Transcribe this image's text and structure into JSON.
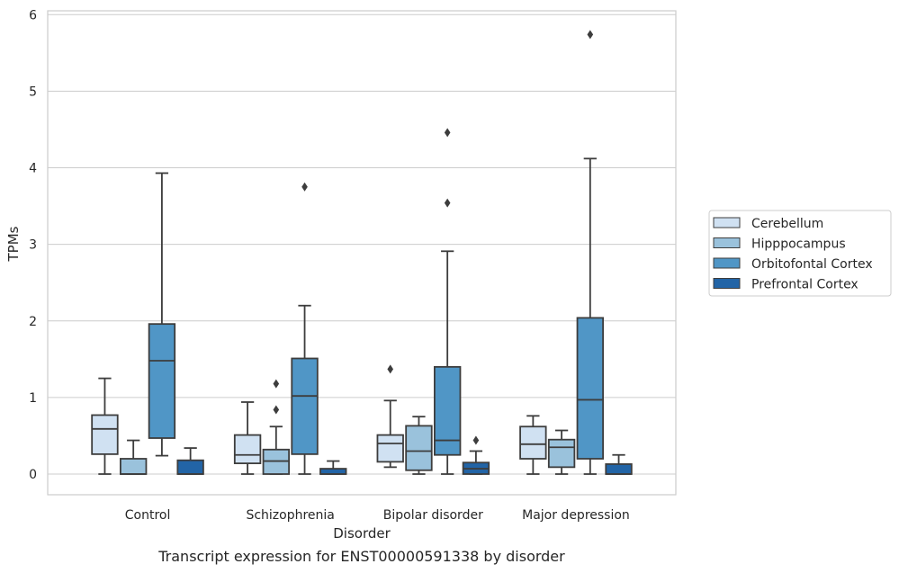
{
  "chart_data": {
    "type": "box",
    "xlabel": "Disorder",
    "ylabel": "TPMs",
    "caption": "Transcript expression for ENST00000591338 by disorder",
    "ylim": [
      -0.27,
      6.05
    ],
    "yticks": [
      "0",
      "1",
      "2",
      "3",
      "4",
      "5",
      "6"
    ],
    "grid": true,
    "legend_position": "right",
    "categories": [
      "Control",
      "Schizophrenia",
      "Bipolar disorder",
      "Major depression"
    ],
    "series": [
      {
        "name": "Cerebellum",
        "color": "#d0e1f2",
        "boxes": [
          {
            "whislo": 0.0,
            "q1": 0.26,
            "med": 0.59,
            "q3": 0.77,
            "whishi": 1.25,
            "fliers": []
          },
          {
            "whislo": 0.0,
            "q1": 0.14,
            "med": 0.25,
            "q3": 0.51,
            "whishi": 0.94,
            "fliers": []
          },
          {
            "whislo": 0.09,
            "q1": 0.16,
            "med": 0.4,
            "q3": 0.51,
            "whishi": 0.96,
            "fliers": [
              1.37
            ]
          },
          {
            "whislo": 0.0,
            "q1": 0.2,
            "med": 0.39,
            "q3": 0.62,
            "whishi": 0.76,
            "fliers": []
          }
        ]
      },
      {
        "name": "Hipppocampus",
        "color": "#9ac2dc",
        "boxes": [
          {
            "whislo": 0.0,
            "q1": 0.0,
            "med": 0.0,
            "q3": 0.2,
            "whishi": 0.44,
            "fliers": []
          },
          {
            "whislo": 0.0,
            "q1": 0.0,
            "med": 0.17,
            "q3": 0.32,
            "whishi": 0.62,
            "fliers": [
              0.84,
              1.18
            ]
          },
          {
            "whislo": 0.0,
            "q1": 0.05,
            "med": 0.3,
            "q3": 0.63,
            "whishi": 0.75,
            "fliers": []
          },
          {
            "whislo": 0.0,
            "q1": 0.09,
            "med": 0.35,
            "q3": 0.45,
            "whishi": 0.57,
            "fliers": []
          }
        ]
      },
      {
        "name": "Orbitofontal Cortex",
        "color": "#5096c6",
        "boxes": [
          {
            "whislo": 0.24,
            "q1": 0.47,
            "med": 1.48,
            "q3": 1.96,
            "whishi": 3.93,
            "fliers": []
          },
          {
            "whislo": 0.0,
            "q1": 0.26,
            "med": 1.02,
            "q3": 1.51,
            "whishi": 2.2,
            "fliers": [
              3.75
            ]
          },
          {
            "whislo": 0.0,
            "q1": 0.25,
            "med": 0.44,
            "q3": 1.4,
            "whishi": 2.91,
            "fliers": [
              3.54,
              4.46
            ]
          },
          {
            "whislo": 0.0,
            "q1": 0.2,
            "med": 0.97,
            "q3": 2.04,
            "whishi": 4.12,
            "fliers": [
              5.74
            ]
          }
        ]
      },
      {
        "name": "Prefrontal Cortex",
        "color": "#2264a6",
        "boxes": [
          {
            "whislo": 0.0,
            "q1": 0.0,
            "med": 0.0,
            "q3": 0.18,
            "whishi": 0.34,
            "fliers": []
          },
          {
            "whislo": 0.0,
            "q1": 0.0,
            "med": 0.0,
            "q3": 0.07,
            "whishi": 0.17,
            "fliers": []
          },
          {
            "whislo": 0.0,
            "q1": 0.0,
            "med": 0.07,
            "q3": 0.15,
            "whishi": 0.3,
            "fliers": [
              0.44
            ]
          },
          {
            "whislo": 0.0,
            "q1": 0.0,
            "med": 0.0,
            "q3": 0.13,
            "whishi": 0.25,
            "fliers": []
          }
        ]
      }
    ]
  }
}
